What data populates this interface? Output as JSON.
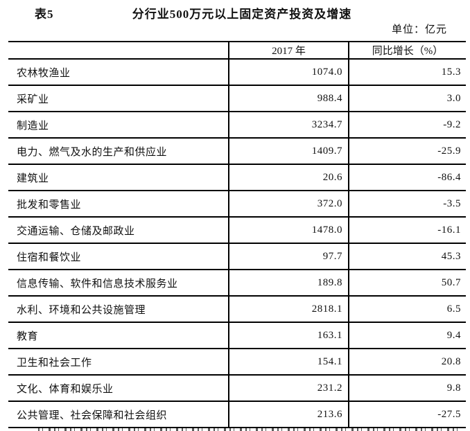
{
  "header": {
    "table_label": "表5",
    "title": "分行业500万元以上固定资产投资及增速",
    "unit_note": "单位：亿元"
  },
  "table": {
    "columns": {
      "industry": "",
      "year": "2017 年",
      "growth": "同比增长（%）"
    },
    "rows": [
      [
        "农林牧渔业",
        "1074.0",
        "15.3"
      ],
      [
        "采矿业",
        "988.4",
        "3.0"
      ],
      [
        "制造业",
        "3234.7",
        "-9.2"
      ],
      [
        "电力、燃气及水的生产和供应业",
        "1409.7",
        "-25.9"
      ],
      [
        "建筑业",
        "20.6",
        "-86.4"
      ],
      [
        "批发和零售业",
        "372.0",
        "-3.5"
      ],
      [
        "交通运输、仓储及邮政业",
        "1478.0",
        "-16.1"
      ],
      [
        "住宿和餐饮业",
        "97.7",
        "45.3"
      ],
      [
        "信息传输、软件和信息技术服务业",
        "189.8",
        "50.7"
      ],
      [
        "水利、环境和公共设施管理",
        "2818.1",
        "6.5"
      ],
      [
        "教育",
        "163.1",
        "9.4"
      ],
      [
        "卫生和社会工作",
        "154.1",
        "20.8"
      ],
      [
        "文化、体育和娱乐业",
        "231.2",
        "9.8"
      ],
      [
        "公共管理、社会保障和社会组织",
        "213.6",
        "-27.5"
      ]
    ]
  },
  "colors": {
    "background": "#ffffff",
    "text": "#111111",
    "rule": "#000000"
  }
}
